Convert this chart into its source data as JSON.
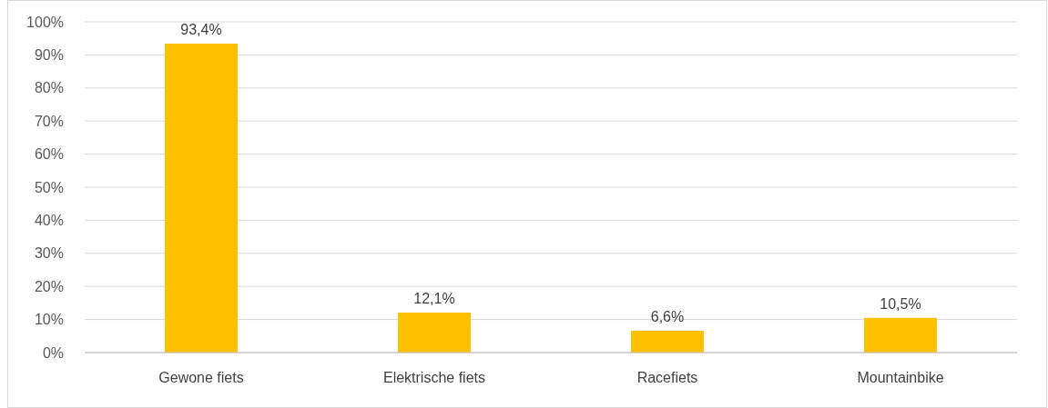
{
  "chart_data": {
    "type": "bar",
    "categories": [
      "Gewone fiets",
      "Elektrische fiets",
      "Racefiets",
      "Mountainbike"
    ],
    "values": [
      93.4,
      12.1,
      6.6,
      10.5
    ],
    "value_labels": [
      "93,4%",
      "12,1%",
      "6,6%",
      "10,5%"
    ],
    "color": "#ffc000",
    "ylim": [
      0,
      100
    ],
    "yticks": [
      {
        "value": 0,
        "label": "0%"
      },
      {
        "value": 10,
        "label": "10%"
      },
      {
        "value": 20,
        "label": "20%"
      },
      {
        "value": 30,
        "label": "30%"
      },
      {
        "value": 40,
        "label": "40%"
      },
      {
        "value": 50,
        "label": "50%"
      },
      {
        "value": 60,
        "label": "60%"
      },
      {
        "value": 70,
        "label": "70%"
      },
      {
        "value": 80,
        "label": "80%"
      },
      {
        "value": 90,
        "label": "90%"
      },
      {
        "value": 100,
        "label": "100%"
      }
    ],
    "grid": "y"
  }
}
